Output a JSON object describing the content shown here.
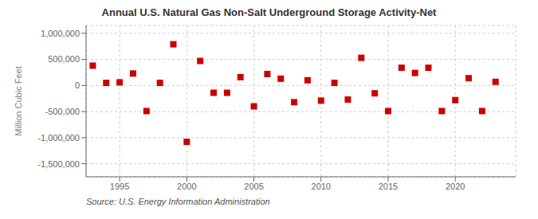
{
  "chart_data": {
    "type": "scatter",
    "title": "Annual U.S. Natural Gas Non-Salt Underground Storage Activity-Net",
    "ylabel": "Million Cubic Feet",
    "annotation": "Source: U.S. Energy Information Administration",
    "x": [
      1993,
      1994,
      1995,
      1996,
      1997,
      1998,
      1999,
      2000,
      2001,
      2002,
      2003,
      2004,
      2005,
      2006,
      2007,
      2008,
      2009,
      2010,
      2011,
      2012,
      2013,
      2014,
      2015,
      2016,
      2017,
      2018,
      2019,
      2020,
      2021,
      2022,
      2023
    ],
    "values": [
      380000,
      50000,
      60000,
      230000,
      -490000,
      50000,
      790000,
      -1080000,
      470000,
      -140000,
      -140000,
      160000,
      -400000,
      220000,
      130000,
      -320000,
      100000,
      -290000,
      50000,
      -270000,
      530000,
      -150000,
      -490000,
      340000,
      240000,
      340000,
      -490000,
      -280000,
      140000,
      -490000,
      70000
    ],
    "color": "#cc0000",
    "marker": "square",
    "xlim": [
      1992.5,
      2024.5
    ],
    "xticks": [
      1995,
      2000,
      2005,
      2010,
      2015,
      2020
    ],
    "ylim": [
      -1750000,
      1150000
    ],
    "yticks": [
      {
        "value": -1500000,
        "label": "-1,500,000"
      },
      {
        "value": -1000000,
        "label": "-1,000,000"
      },
      {
        "value": -500000,
        "label": "-500,000"
      },
      0,
      {
        "value": 500000,
        "label": "500,000"
      },
      {
        "value": 1000000,
        "label": "1,000,000"
      }
    ],
    "grid": true
  }
}
